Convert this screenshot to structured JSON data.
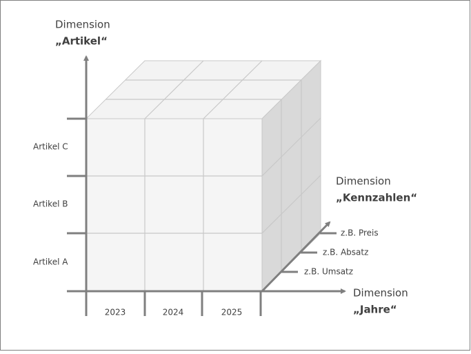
{
  "dimensions": {
    "artikel": {
      "line1": "Dimension",
      "line2": "„Artikel“"
    },
    "kennzahlen": {
      "line1": "Dimension",
      "line2": "„Kennzahlen“"
    },
    "jahre": {
      "line1": "Dimension",
      "line2": "„Jahre“"
    }
  },
  "rows": [
    "Artikel C",
    "Artikel B",
    "Artikel A"
  ],
  "columns": [
    "2023",
    "2024",
    "2025"
  ],
  "measures": [
    "z.B. Preis",
    "z.B. Absatz",
    "z.B. Umsatz"
  ]
}
